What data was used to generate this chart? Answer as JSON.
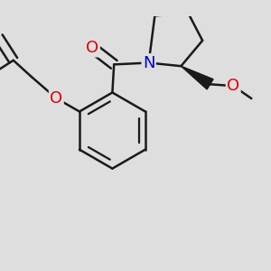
{
  "background_color": "#dedede",
  "bond_color": "#1a1a1a",
  "bond_width": 1.8,
  "atom_colors": {
    "O": "#dd0000",
    "N": "#0000cc",
    "C": "#1a1a1a"
  },
  "figsize": [
    3.0,
    3.0
  ],
  "dpi": 100
}
